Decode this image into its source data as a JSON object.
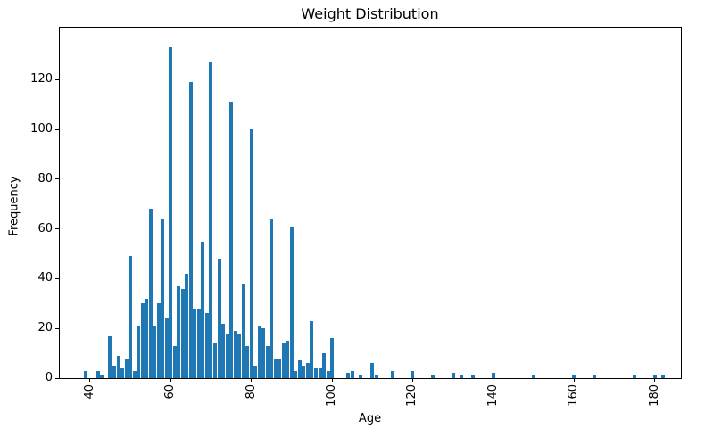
{
  "chart_data": {
    "type": "bar",
    "title": "Weight Distribution",
    "xlabel": "Age",
    "ylabel": "Frequency",
    "bar_color": "#1f77b4",
    "axis_color": "#000000",
    "background_color": "#ffffff",
    "legend": "none",
    "grid": false,
    "x_tick_rotation_deg": 90,
    "x_ticks": [
      40,
      60,
      80,
      100,
      120,
      140,
      160,
      180
    ],
    "y_ticks": [
      0,
      20,
      40,
      60,
      80,
      100,
      120
    ],
    "x_domain": [
      32.5,
      186.5
    ],
    "y_domain": [
      0,
      140.9
    ],
    "bars": [
      [
        39,
        3
      ],
      [
        42,
        3
      ],
      [
        43,
        1
      ],
      [
        45,
        17
      ],
      [
        46,
        5
      ],
      [
        47,
        9
      ],
      [
        48,
        4
      ],
      [
        49,
        8
      ],
      [
        50,
        49
      ],
      [
        51,
        3
      ],
      [
        52,
        21
      ],
      [
        53,
        30
      ],
      [
        54,
        32
      ],
      [
        55,
        68
      ],
      [
        56,
        21
      ],
      [
        57,
        30
      ],
      [
        58,
        64
      ],
      [
        59,
        24
      ],
      [
        60,
        133
      ],
      [
        61,
        13
      ],
      [
        62,
        37
      ],
      [
        63,
        36
      ],
      [
        64,
        42
      ],
      [
        65,
        119
      ],
      [
        66,
        28
      ],
      [
        67,
        28
      ],
      [
        68,
        55
      ],
      [
        69,
        26
      ],
      [
        70,
        127
      ],
      [
        71,
        14
      ],
      [
        72,
        48
      ],
      [
        73,
        22
      ],
      [
        74,
        18
      ],
      [
        75,
        111
      ],
      [
        76,
        19
      ],
      [
        77,
        18
      ],
      [
        78,
        38
      ],
      [
        79,
        13
      ],
      [
        80,
        100
      ],
      [
        81,
        5
      ],
      [
        82,
        21
      ],
      [
        83,
        20
      ],
      [
        84,
        13
      ],
      [
        85,
        64
      ],
      [
        86,
        8
      ],
      [
        87,
        8
      ],
      [
        88,
        14
      ],
      [
        89,
        15
      ],
      [
        90,
        61
      ],
      [
        91,
        3
      ],
      [
        92,
        7
      ],
      [
        93,
        5
      ],
      [
        94,
        6
      ],
      [
        95,
        23
      ],
      [
        96,
        4
      ],
      [
        97,
        4
      ],
      [
        98,
        10
      ],
      [
        99,
        3
      ],
      [
        100,
        16
      ],
      [
        104,
        2
      ],
      [
        105,
        3
      ],
      [
        107,
        1
      ],
      [
        110,
        6
      ],
      [
        111,
        1
      ],
      [
        115,
        3
      ],
      [
        120,
        3
      ],
      [
        125,
        1
      ],
      [
        130,
        2
      ],
      [
        132,
        1
      ],
      [
        135,
        1
      ],
      [
        140,
        2
      ],
      [
        150,
        1
      ],
      [
        160,
        1
      ],
      [
        165,
        1
      ],
      [
        175,
        1
      ],
      [
        180,
        1
      ],
      [
        182,
        1
      ]
    ]
  }
}
